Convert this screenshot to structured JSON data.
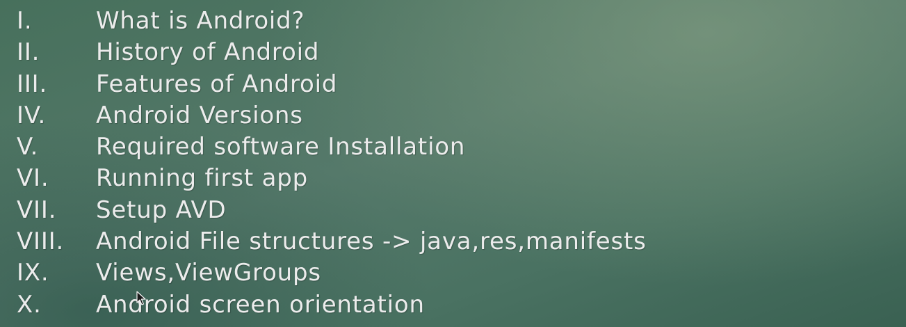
{
  "slide": {
    "items": [
      {
        "numeral": "I.",
        "text": "What is Android?"
      },
      {
        "numeral": "II.",
        "text": "History of Android"
      },
      {
        "numeral": "III.",
        "text": "Features of Android"
      },
      {
        "numeral": "IV.",
        "text": "Android Versions"
      },
      {
        "numeral": "V.",
        "text": "Required software Installation"
      },
      {
        "numeral": "VI.",
        "text": "Running first app"
      },
      {
        "numeral": "VII.",
        "text": "Setup AVD"
      },
      {
        "numeral": "VIII.",
        "text": "Android File structures -> java,res,manifests"
      },
      {
        "numeral": "IX.",
        "text": "Views,ViewGroups"
      },
      {
        "numeral": "X.",
        "text": "Android screen orientation"
      }
    ]
  },
  "icons": {
    "cursor": "mouse-pointer-icon"
  },
  "colors": {
    "text": "#ececec",
    "background": "#4f7564"
  }
}
